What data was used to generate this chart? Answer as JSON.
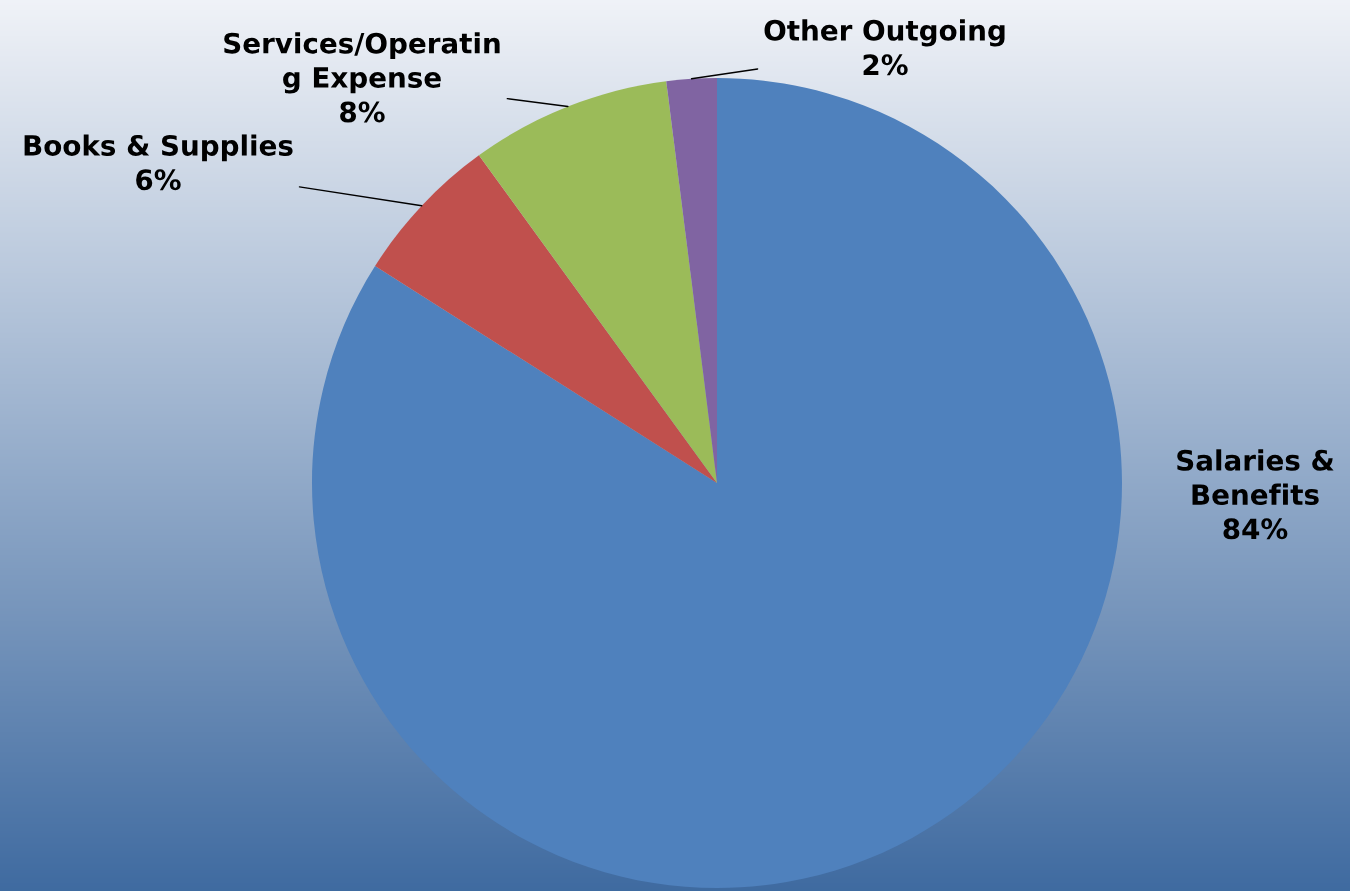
{
  "chart_data": {
    "type": "pie",
    "categories": [
      "Salaries &\nBenefits",
      "Books & Supplies",
      "Services/Operatin\ng Expense",
      "Other Outgoing"
    ],
    "values": [
      84,
      6,
      8,
      2
    ],
    "value_labels": [
      "84%",
      "6%",
      "8%",
      "2%"
    ],
    "colors": [
      "#4f81bd",
      "#c0504d",
      "#9bbb59",
      "#8064a2"
    ]
  }
}
